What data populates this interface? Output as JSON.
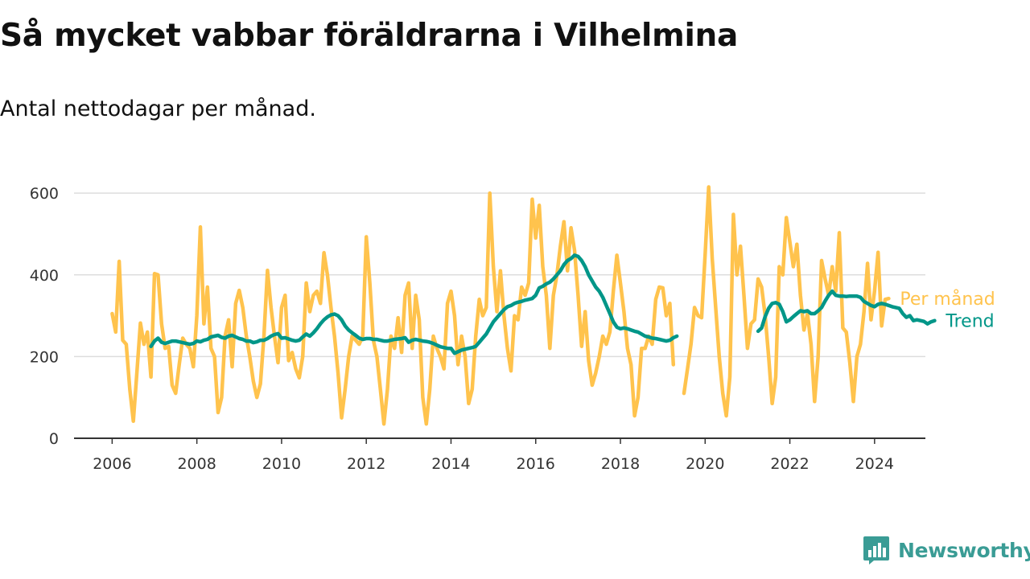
{
  "title": "Så mycket vabbar föräldrarna i Vilhelmina",
  "subtitle": "Antal nettodagar per månad.",
  "brand": {
    "name": "Newsworthy",
    "color": "#3a9c95"
  },
  "colors": {
    "monthly": "#ffc34d",
    "trend": "#009688",
    "grid": "#dddddd",
    "axis": "#333333"
  },
  "chart_data": {
    "type": "line",
    "title": "",
    "xlabel": "",
    "ylabel": "",
    "ylim": [
      0,
      620
    ],
    "xlim": [
      2005.1,
      2025.2
    ],
    "y_ticks": [
      0,
      200,
      400,
      600
    ],
    "x_ticks": [
      2006,
      2008,
      2010,
      2012,
      2014,
      2016,
      2018,
      2020,
      2022,
      2024
    ],
    "grid": "horizontal",
    "legend": "right-end labels",
    "series": [
      {
        "name": "Per månad",
        "x_start": 2006.0,
        "x_step": 0.0833333,
        "values": [
          305,
          260,
          433,
          240,
          230,
          120,
          42,
          160,
          282,
          230,
          260,
          150,
          403,
          400,
          280,
          220,
          225,
          130,
          110,
          180,
          245,
          230,
          220,
          175,
          300,
          517,
          280,
          370,
          220,
          200,
          63,
          100,
          250,
          290,
          175,
          330,
          362,
          320,
          250,
          200,
          140,
          100,
          133,
          250,
          411,
          320,
          250,
          185,
          320,
          350,
          190,
          210,
          170,
          148,
          200,
          380,
          310,
          350,
          360,
          330,
          454,
          400,
          320,
          250,
          160,
          50,
          120,
          200,
          250,
          240,
          230,
          250,
          493,
          380,
          240,
          200,
          120,
          35,
          120,
          250,
          220,
          295,
          210,
          350,
          380,
          220,
          350,
          290,
          100,
          35,
          120,
          250,
          220,
          200,
          170,
          330,
          360,
          300,
          180,
          250,
          200,
          85,
          120,
          250,
          340,
          300,
          320,
          600,
          420,
          310,
          410,
          300,
          220,
          165,
          300,
          290,
          370,
          350,
          380,
          585,
          490,
          570,
          420,
          350,
          220,
          350,
          400,
          470,
          530,
          410,
          515,
          460,
          350,
          225,
          310,
          190,
          130,
          160,
          200,
          250,
          230,
          260,
          360,
          448,
          380,
          310,
          220,
          180,
          55,
          100,
          220,
          220,
          250,
          230,
          340,
          370,
          368,
          300,
          330,
          180,
          null,
          null,
          110,
          170,
          230,
          320,
          300,
          295,
          450,
          615,
          440,
          320,
          200,
          110,
          55,
          150,
          548,
          400,
          470,
          350,
          220,
          280,
          290,
          390,
          370,
          300,
          200,
          85,
          150,
          420,
          400,
          540,
          480,
          420,
          475,
          350,
          265,
          305,
          230,
          90,
          200,
          435,
          390,
          350,
          420,
          360,
          503,
          270,
          260,
          185,
          90,
          200,
          230,
          310,
          428,
          290,
          360,
          455,
          275,
          340,
          342
        ]
      },
      {
        "name": "Trend",
        "x_start": 2006.9167,
        "x_step": 0.0833333,
        "values": [
          225,
          238,
          245,
          235,
          232,
          235,
          238,
          238,
          236,
          234,
          232,
          230,
          232,
          238,
          236,
          240,
          242,
          248,
          250,
          252,
          247,
          245,
          250,
          252,
          248,
          244,
          242,
          238,
          238,
          234,
          236,
          240,
          240,
          244,
          250,
          254,
          256,
          245,
          246,
          243,
          240,
          238,
          240,
          248,
          255,
          250,
          258,
          268,
          280,
          290,
          297,
          302,
          304,
          300,
          290,
          275,
          265,
          258,
          252,
          245,
          242,
          244,
          244,
          242,
          242,
          240,
          238,
          238,
          240,
          242,
          243,
          244,
          246,
          235,
          240,
          242,
          240,
          238,
          237,
          235,
          232,
          228,
          224,
          222,
          220,
          220,
          208,
          212,
          216,
          218,
          220,
          222,
          225,
          235,
          245,
          255,
          270,
          285,
          295,
          305,
          315,
          322,
          325,
          330,
          333,
          335,
          338,
          340,
          342,
          350,
          368,
          372,
          378,
          382,
          390,
          400,
          410,
          425,
          435,
          440,
          448,
          445,
          435,
          420,
          400,
          385,
          370,
          360,
          345,
          325,
          305,
          285,
          272,
          268,
          270,
          268,
          265,
          262,
          260,
          255,
          250,
          248,
          245,
          244,
          242,
          240,
          238,
          240,
          246,
          250,
          null,
          null,
          null,
          null,
          null,
          null,
          null,
          null,
          null,
          null,
          null,
          null,
          null,
          null,
          null,
          null,
          null,
          null,
          null,
          null,
          null,
          null,
          262,
          270,
          298,
          318,
          330,
          332,
          328,
          310,
          285,
          290,
          298,
          305,
          312,
          310,
          312,
          305,
          305,
          312,
          320,
          336,
          350,
          360,
          350,
          348,
          348,
          347,
          348,
          348,
          348,
          345,
          335,
          330,
          325,
          322,
          328,
          330,
          328,
          325,
          322,
          320,
          318,
          305,
          296,
          300,
          288,
          290,
          288,
          286,
          280,
          285,
          288
        ]
      }
    ]
  }
}
